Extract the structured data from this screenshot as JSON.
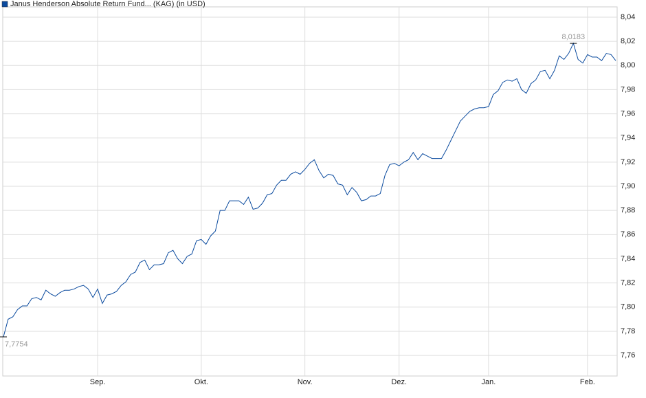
{
  "chart_data": {
    "type": "line",
    "legend_title": "Janus Henderson Absolute Return Fund... (KAG)  (in USD)",
    "categories": [
      null,
      null,
      null,
      null,
      null,
      null,
      null,
      null,
      null,
      null,
      null,
      null,
      null,
      null,
      null,
      null,
      null,
      null,
      null,
      null,
      "Sep.",
      null,
      null,
      null,
      null,
      null,
      null,
      null,
      null,
      null,
      null,
      null,
      null,
      null,
      null,
      null,
      null,
      null,
      null,
      null,
      null,
      null,
      "Okt.",
      null,
      null,
      null,
      null,
      null,
      null,
      null,
      null,
      null,
      null,
      null,
      null,
      null,
      null,
      null,
      null,
      null,
      null,
      null,
      null,
      null,
      "Nov.",
      null,
      null,
      null,
      null,
      null,
      null,
      null,
      null,
      null,
      null,
      null,
      null,
      null,
      null,
      null,
      null,
      null,
      null,
      null,
      "Dez.",
      null,
      null,
      null,
      null,
      null,
      null,
      null,
      null,
      null,
      null,
      null,
      null,
      null,
      null,
      null,
      null,
      null,
      null,
      "Jan.",
      null,
      null,
      null,
      null,
      null,
      null,
      null,
      null,
      null,
      null,
      null,
      null,
      null,
      null,
      null,
      null,
      null,
      null,
      null,
      null,
      "Feb.",
      null,
      null,
      null,
      null,
      null,
      null
    ],
    "series": [
      {
        "name": "Janus Henderson Absolute Return Fund... (KAG)  (in USD)",
        "color": "#0a4a9e",
        "values": [
          7.7754,
          7.79,
          7.792,
          7.798,
          7.801,
          7.801,
          7.807,
          7.808,
          7.806,
          7.814,
          7.811,
          7.809,
          7.812,
          7.814,
          7.814,
          7.815,
          7.817,
          7.818,
          7.815,
          7.808,
          7.815,
          7.803,
          7.81,
          7.811,
          7.813,
          7.818,
          7.821,
          7.827,
          7.829,
          7.837,
          7.839,
          7.831,
          7.835,
          7.835,
          7.836,
          7.845,
          7.847,
          7.84,
          7.836,
          7.842,
          7.844,
          7.855,
          7.856,
          7.852,
          7.859,
          7.863,
          7.88,
          7.88,
          7.888,
          7.888,
          7.888,
          7.885,
          7.891,
          7.881,
          7.882,
          7.886,
          7.893,
          7.894,
          7.901,
          7.905,
          7.905,
          7.91,
          7.912,
          7.91,
          7.914,
          7.919,
          7.922,
          7.913,
          7.907,
          7.91,
          7.909,
          7.902,
          7.901,
          7.893,
          7.899,
          7.895,
          7.888,
          7.889,
          7.892,
          7.892,
          7.894,
          7.909,
          7.918,
          7.919,
          7.917,
          7.92,
          7.922,
          7.928,
          7.922,
          7.927,
          7.925,
          7.923,
          7.923,
          7.923,
          7.93,
          7.938,
          7.946,
          7.954,
          7.958,
          7.962,
          7.964,
          7.965,
          7.965,
          7.966,
          7.976,
          7.979,
          7.986,
          7.988,
          7.987,
          7.989,
          7.98,
          7.977,
          7.985,
          7.988,
          7.995,
          7.996,
          7.989,
          7.996,
          8.008,
          8.005,
          8.01,
          8.0183,
          8.005,
          8.002,
          8.009,
          8.007,
          8.007,
          8.004,
          8.01,
          8.009,
          8.004
        ],
        "value_labels": [
          "7,7754",
          null,
          null,
          null,
          null,
          null,
          null,
          null,
          null,
          null,
          null,
          null,
          null,
          null,
          null,
          null,
          null,
          null,
          null,
          null,
          null,
          null,
          null,
          null,
          null,
          null,
          null,
          null,
          null,
          null,
          null,
          null,
          null,
          null,
          null,
          null,
          null,
          null,
          null,
          null,
          null,
          null,
          null,
          null,
          null,
          null,
          null,
          null,
          null,
          null,
          null,
          null,
          null,
          null,
          null,
          null,
          null,
          null,
          null,
          null,
          null,
          null,
          null,
          null,
          null,
          null,
          null,
          null,
          null,
          null,
          null,
          null,
          null,
          null,
          null,
          null,
          null,
          null,
          null,
          null,
          null,
          null,
          null,
          null,
          null,
          null,
          null,
          null,
          null,
          null,
          null,
          null,
          null,
          null,
          null,
          null,
          null,
          null,
          null,
          null,
          null,
          null,
          null,
          null,
          null,
          null,
          null,
          null,
          null,
          null,
          null,
          null,
          null,
          null,
          null,
          null,
          null,
          null,
          null,
          null,
          null,
          "8,0183",
          null,
          null,
          null,
          null,
          null,
          null,
          null,
          null,
          null
        ]
      }
    ],
    "ylim": [
      7.743,
      8.0485
    ],
    "yticks": [
      {
        "value": 7.76,
        "label": "7,76"
      },
      {
        "value": 7.78,
        "label": "7,78"
      },
      {
        "value": 7.8,
        "label": "7,80"
      },
      {
        "value": 7.82,
        "label": "7,82"
      },
      {
        "value": 7.84,
        "label": "7,84"
      },
      {
        "value": 7.86,
        "label": "7,86"
      },
      {
        "value": 7.88,
        "label": "7,88"
      },
      {
        "value": 7.9,
        "label": "7,90"
      },
      {
        "value": 7.92,
        "label": "7,92"
      },
      {
        "value": 7.94,
        "label": "7,94"
      },
      {
        "value": 7.96,
        "label": "7,96"
      },
      {
        "value": 7.98,
        "label": "7,98"
      },
      {
        "value": 8.0,
        "label": "8,00"
      },
      {
        "value": 8.02,
        "label": "8,02"
      },
      {
        "value": 8.04,
        "label": "8,04"
      }
    ],
    "grid": true
  }
}
